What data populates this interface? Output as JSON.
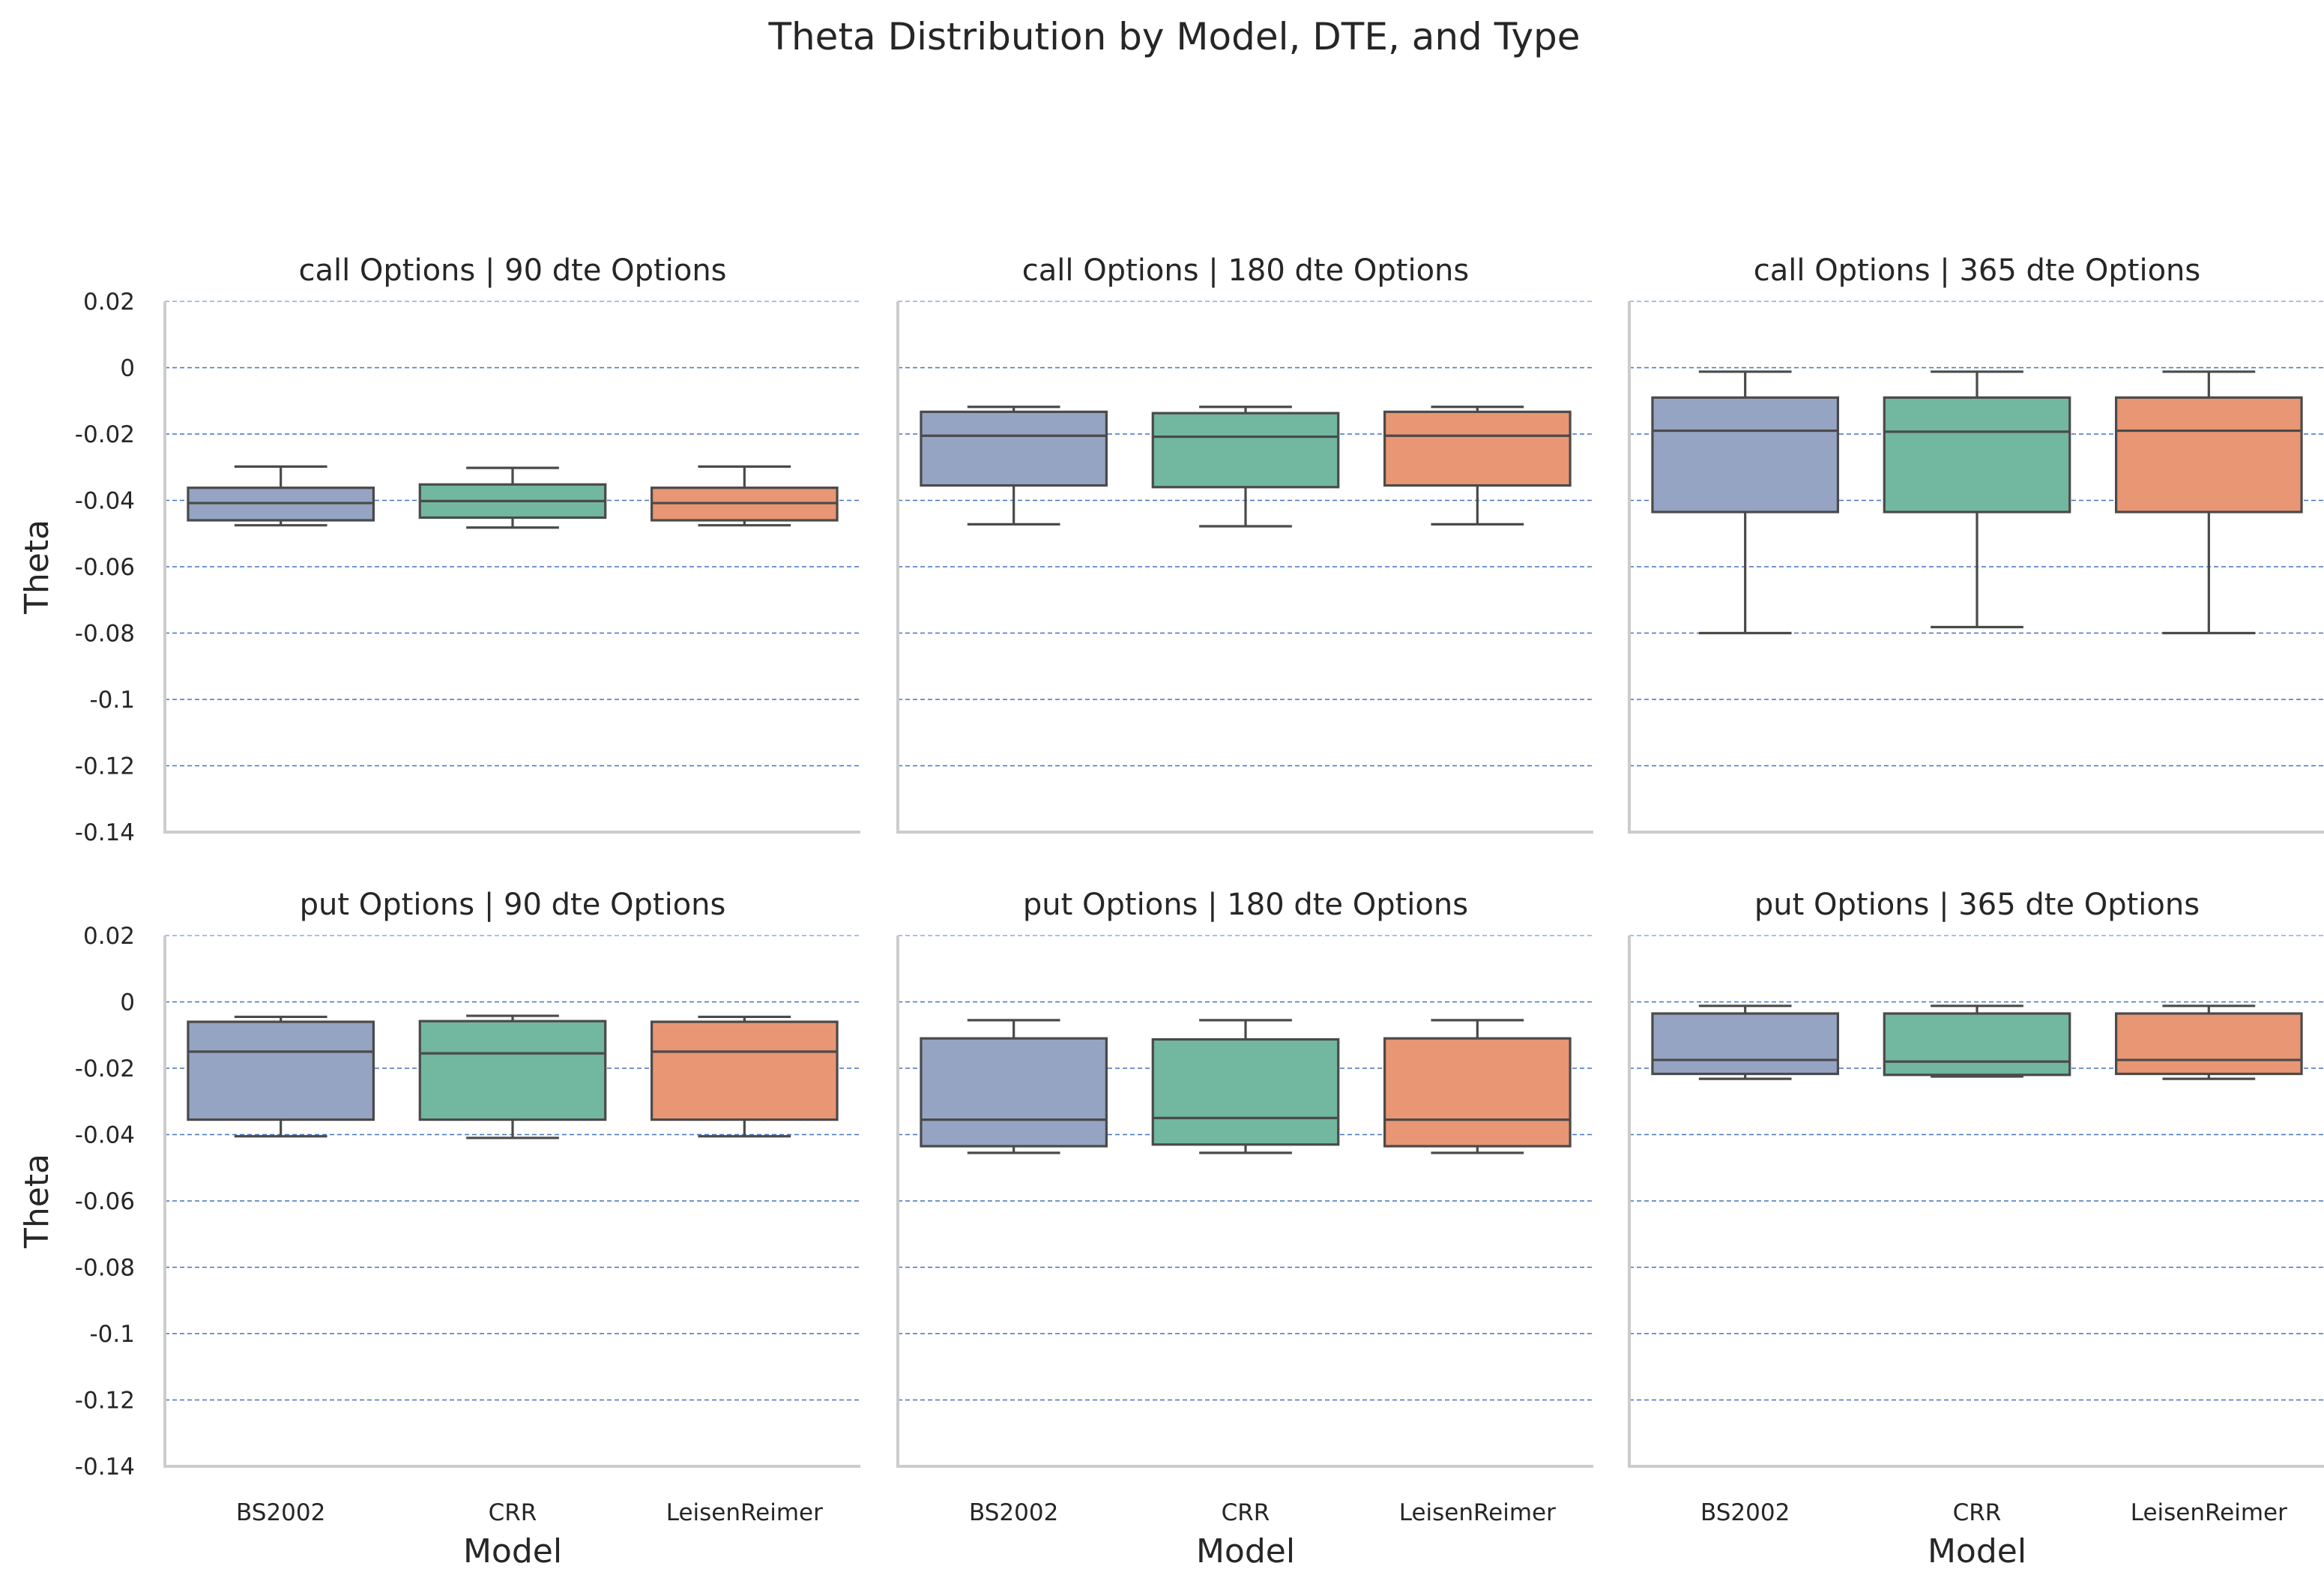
{
  "figure": {
    "title": "Theta Distribution by Model, DTE, and Type"
  },
  "colors": {
    "BS2002": "#95a4c3",
    "CRR": "#72b7a0",
    "LeisenReimer": "#e89674",
    "box_edge": "#4a4a4a",
    "grid": "#4472c4",
    "spine": "#cccccc"
  },
  "chart_data": {
    "type": "box",
    "categories": [
      "BS2002",
      "CRR",
      "LeisenReimer"
    ],
    "xlabel": "Model",
    "ylabel": "Theta",
    "ylim": [
      -0.14,
      0.02
    ],
    "yticks": [
      0.02,
      0,
      -0.02,
      -0.04,
      -0.06,
      -0.08,
      -0.1,
      -0.12,
      -0.14
    ],
    "ytick_labels": [
      "0.02",
      "0",
      "-0.02",
      "-0.04",
      "-0.06",
      "-0.08",
      "-0.1",
      "-0.12",
      "-0.14"
    ],
    "grid": "horizontal-dashed",
    "panels": [
      {
        "title": "call Options | 90 dte Options",
        "boxes": [
          {
            "model": "BS2002",
            "whisker_low": -0.0475,
            "q1": -0.046,
            "median": -0.0408,
            "q3": -0.0362,
            "whisker_high": -0.0298
          },
          {
            "model": "CRR",
            "whisker_low": -0.0482,
            "q1": -0.0452,
            "median": -0.0402,
            "q3": -0.0352,
            "whisker_high": -0.0302
          },
          {
            "model": "LeisenReimer",
            "whisker_low": -0.0475,
            "q1": -0.046,
            "median": -0.0408,
            "q3": -0.0362,
            "whisker_high": -0.0298
          }
        ]
      },
      {
        "title": "call Options | 180 dte Options",
        "boxes": [
          {
            "model": "BS2002",
            "whisker_low": -0.0472,
            "q1": -0.0355,
            "median": -0.0205,
            "q3": -0.0133,
            "whisker_high": -0.0118
          },
          {
            "model": "CRR",
            "whisker_low": -0.0478,
            "q1": -0.036,
            "median": -0.0208,
            "q3": -0.0137,
            "whisker_high": -0.0118
          },
          {
            "model": "LeisenReimer",
            "whisker_low": -0.0472,
            "q1": -0.0355,
            "median": -0.0205,
            "q3": -0.0133,
            "whisker_high": -0.0118
          }
        ]
      },
      {
        "title": "call Options | 365 dte Options",
        "boxes": [
          {
            "model": "BS2002",
            "whisker_low": -0.08,
            "q1": -0.0435,
            "median": -0.019,
            "q3": -0.009,
            "whisker_high": -0.0012
          },
          {
            "model": "CRR",
            "whisker_low": -0.0782,
            "q1": -0.0435,
            "median": -0.0193,
            "q3": -0.009,
            "whisker_high": -0.0012
          },
          {
            "model": "LeisenReimer",
            "whisker_low": -0.08,
            "q1": -0.0435,
            "median": -0.019,
            "q3": -0.009,
            "whisker_high": -0.0012
          }
        ]
      },
      {
        "title": "put Options | 90 dte Options",
        "boxes": [
          {
            "model": "BS2002",
            "whisker_low": -0.0405,
            "q1": -0.0355,
            "median": -0.015,
            "q3": -0.006,
            "whisker_high": -0.0045
          },
          {
            "model": "CRR",
            "whisker_low": -0.041,
            "q1": -0.0355,
            "median": -0.0155,
            "q3": -0.0058,
            "whisker_high": -0.0042
          },
          {
            "model": "LeisenReimer",
            "whisker_low": -0.0405,
            "q1": -0.0355,
            "median": -0.015,
            "q3": -0.006,
            "whisker_high": -0.0045
          }
        ]
      },
      {
        "title": "put Options | 180 dte Options",
        "boxes": [
          {
            "model": "BS2002",
            "whisker_low": -0.0455,
            "q1": -0.0435,
            "median": -0.0355,
            "q3": -0.011,
            "whisker_high": -0.0055
          },
          {
            "model": "CRR",
            "whisker_low": -0.0455,
            "q1": -0.043,
            "median": -0.035,
            "q3": -0.0113,
            "whisker_high": -0.0055
          },
          {
            "model": "LeisenReimer",
            "whisker_low": -0.0455,
            "q1": -0.0435,
            "median": -0.0355,
            "q3": -0.011,
            "whisker_high": -0.0055
          }
        ]
      },
      {
        "title": "put Options | 365 dte Options",
        "boxes": [
          {
            "model": "BS2002",
            "whisker_low": -0.0232,
            "q1": -0.0217,
            "median": -0.0175,
            "q3": -0.0035,
            "whisker_high": -0.0012
          },
          {
            "model": "CRR",
            "whisker_low": -0.0225,
            "q1": -0.022,
            "median": -0.018,
            "q3": -0.0035,
            "whisker_high": -0.0012
          },
          {
            "model": "LeisenReimer",
            "whisker_low": -0.0232,
            "q1": -0.0217,
            "median": -0.0175,
            "q3": -0.0035,
            "whisker_high": -0.0012
          }
        ]
      }
    ]
  }
}
